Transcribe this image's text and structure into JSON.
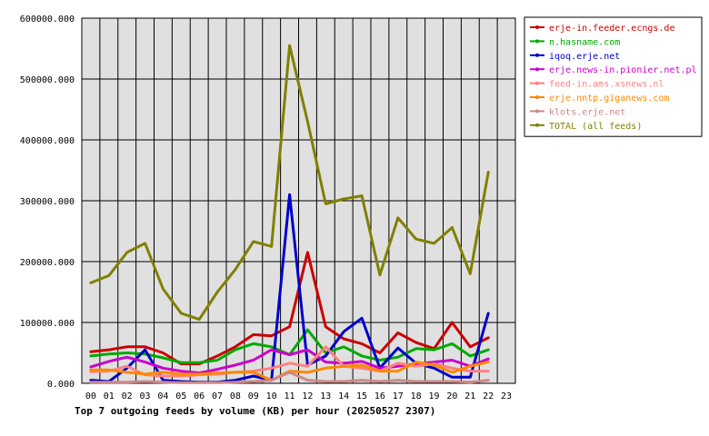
{
  "chart_data": {
    "type": "line",
    "title": "Top 7 outgoing feeds by volume (KB) per hour (20250527 2307)",
    "xlabel": "",
    "ylabel": "",
    "categories": [
      "00",
      "01",
      "02",
      "03",
      "04",
      "05",
      "06",
      "07",
      "08",
      "09",
      "10",
      "11",
      "12",
      "13",
      "14",
      "15",
      "16",
      "17",
      "18",
      "19",
      "20",
      "21",
      "22",
      "23"
    ],
    "y_ticks": [
      "0.000",
      "100000.000",
      "200000.000",
      "300000.000",
      "400000.000",
      "500000.000",
      "600000.000"
    ],
    "ylim": [
      0,
      600000
    ],
    "grid": true,
    "legend_position": "right",
    "series": [
      {
        "name": "erje-in.feeder.ecngs.de",
        "color": "#cc0000",
        "values": [
          52000,
          55000,
          60000,
          60000,
          50000,
          32000,
          32000,
          45000,
          60000,
          80000,
          78000,
          93000,
          215000,
          93000,
          73000,
          65000,
          50000,
          83000,
          67000,
          57000,
          100000,
          60000,
          75000,
          null
        ]
      },
      {
        "name": "n.hasname.com",
        "color": "#00aa00",
        "values": [
          45000,
          48000,
          50000,
          48000,
          42000,
          34000,
          34000,
          38000,
          55000,
          65000,
          60000,
          47000,
          88000,
          50000,
          60000,
          45000,
          38000,
          43000,
          57000,
          55000,
          65000,
          45000,
          55000,
          null
        ]
      },
      {
        "name": "iqoq.erje.net",
        "color": "#0000cc",
        "values": [
          5000,
          3000,
          25000,
          55000,
          5000,
          3000,
          2000,
          2000,
          5000,
          12000,
          5000,
          310000,
          30000,
          45000,
          85000,
          107000,
          25000,
          58000,
          33000,
          25000,
          10000,
          10000,
          115000,
          null
        ]
      },
      {
        "name": "erje.news-in.pionier.net.pl",
        "color": "#cc00cc",
        "values": [
          27000,
          36000,
          43000,
          35000,
          25000,
          20000,
          17000,
          23000,
          30000,
          38000,
          55000,
          47000,
          55000,
          35000,
          33000,
          36000,
          25000,
          28000,
          32000,
          35000,
          38000,
          28000,
          40000,
          null
        ]
      },
      {
        "name": "feed-in.ams.xsnews.nl",
        "color": "#ff8080",
        "values": [
          19000,
          20000,
          28000,
          14000,
          12000,
          12000,
          14000,
          15000,
          18000,
          20000,
          25000,
          33000,
          28000,
          60000,
          28000,
          25000,
          20000,
          33000,
          28000,
          32000,
          25000,
          20000,
          20000,
          null
        ]
      },
      {
        "name": "erje.nntp.giganews.com",
        "color": "#ff8800",
        "values": [
          22000,
          22000,
          18000,
          15000,
          18000,
          15000,
          15000,
          17000,
          18000,
          18000,
          5000,
          20000,
          18000,
          25000,
          28000,
          30000,
          20000,
          20000,
          35000,
          30000,
          18000,
          28000,
          35000,
          null
        ]
      },
      {
        "name": "klots.erje.net",
        "color": "#cc8888",
        "values": [
          2000,
          2000,
          2000,
          3000,
          2000,
          1000,
          1000,
          1000,
          2000,
          3000,
          5000,
          18000,
          5000,
          3000,
          3000,
          5000,
          3000,
          5000,
          3000,
          3000,
          3000,
          2000,
          5000,
          null
        ]
      },
      {
        "name": "TOTAL (all feeds)",
        "color": "#808000",
        "values": [
          165000,
          177000,
          215000,
          230000,
          155000,
          115000,
          105000,
          150000,
          187000,
          233000,
          225000,
          555000,
          430000,
          295000,
          303000,
          308000,
          178000,
          272000,
          237000,
          230000,
          256000,
          180000,
          347000,
          null
        ]
      }
    ]
  }
}
